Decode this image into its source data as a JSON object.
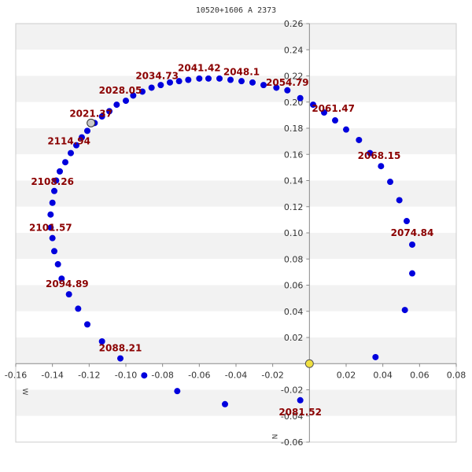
{
  "chart_data": {
    "type": "scatter",
    "title": "10520+1606 A  2373",
    "xlim": [
      -0.16,
      0.08
    ],
    "ylim": [
      -0.06,
      0.26
    ],
    "x_ticks": [
      "-0.16",
      "-0.14",
      "-0.12",
      "-0.10",
      "-0.08",
      "-0.06",
      "-0.04",
      "-0.02",
      "0.02",
      "0.04",
      "0.06",
      "0.08"
    ],
    "y_ticks": [
      "-0.06",
      "-0.04",
      "-0.02",
      "0.02",
      "0.04",
      "0.06",
      "0.08",
      "0.10",
      "0.12",
      "0.14",
      "0.16",
      "0.18",
      "0.20",
      "0.22",
      "0.24",
      "0.26"
    ],
    "x_axis_label": "W",
    "y_axis_label": "N",
    "grid": "horizontal alternating bands",
    "colors": {
      "points": "#0000dd",
      "labels": "#8b0000",
      "band": "#f2f2f2",
      "origin_marker": "#f0e040",
      "reference_marker": "#c8c8c8"
    },
    "series": [
      {
        "values": [
          [
            0.002,
            0.198
          ],
          [
            0.008,
            0.192
          ],
          [
            0.014,
            0.186
          ],
          [
            0.02,
            0.179
          ],
          [
            0.027,
            0.171
          ],
          [
            0.033,
            0.161
          ],
          [
            0.039,
            0.151
          ],
          [
            0.044,
            0.139
          ],
          [
            0.049,
            0.125
          ],
          [
            0.053,
            0.109
          ],
          [
            0.056,
            0.091
          ],
          [
            0.056,
            0.069
          ],
          [
            0.052,
            0.041
          ],
          [
            0.036,
            0.005
          ],
          [
            -0.005,
            -0.028
          ],
          [
            -0.046,
            -0.031
          ],
          [
            -0.072,
            -0.021
          ],
          [
            -0.09,
            -0.009
          ],
          [
            -0.103,
            0.004
          ],
          [
            -0.113,
            0.017
          ],
          [
            -0.121,
            0.03
          ],
          [
            -0.126,
            0.042
          ],
          [
            -0.131,
            0.053
          ],
          [
            -0.135,
            0.065
          ],
          [
            -0.137,
            0.076
          ],
          [
            -0.139,
            0.086
          ],
          [
            -0.14,
            0.096
          ],
          [
            -0.141,
            0.104
          ],
          [
            -0.141,
            0.114
          ],
          [
            -0.14,
            0.123
          ],
          [
            -0.139,
            0.132
          ],
          [
            -0.138,
            0.14
          ],
          [
            -0.136,
            0.147
          ],
          [
            -0.133,
            0.154
          ],
          [
            -0.13,
            0.161
          ],
          [
            -0.127,
            0.167
          ],
          [
            -0.124,
            0.173
          ],
          [
            -0.121,
            0.178
          ],
          [
            -0.117,
            0.184
          ],
          [
            -0.113,
            0.189
          ],
          [
            -0.109,
            0.193
          ],
          [
            -0.105,
            0.198
          ],
          [
            -0.1,
            0.201
          ],
          [
            -0.096,
            0.205
          ],
          [
            -0.091,
            0.208
          ],
          [
            -0.086,
            0.211
          ],
          [
            -0.081,
            0.213
          ],
          [
            -0.076,
            0.215
          ],
          [
            -0.071,
            0.216
          ],
          [
            -0.066,
            0.217
          ],
          [
            -0.06,
            0.218
          ],
          [
            -0.055,
            0.218
          ],
          [
            -0.049,
            0.218
          ],
          [
            -0.043,
            0.217
          ],
          [
            -0.037,
            0.216
          ],
          [
            -0.031,
            0.215
          ],
          [
            -0.025,
            0.213
          ],
          [
            -0.018,
            0.211
          ],
          [
            -0.012,
            0.209
          ],
          [
            -0.005,
            0.203
          ]
        ]
      }
    ],
    "origin_marker": [
      0.0,
      0.0
    ],
    "reference_marker": [
      -0.119,
      0.184
    ],
    "annotations": [
      {
        "text": "2061.47",
        "x": 0.013,
        "y": 0.195
      },
      {
        "text": "2068.15",
        "x": 0.038,
        "y": 0.159
      },
      {
        "text": "2074.84",
        "x": 0.056,
        "y": 0.1
      },
      {
        "text": "2081.52",
        "x": -0.005,
        "y": -0.037
      },
      {
        "text": "2088.21",
        "x": -0.103,
        "y": 0.012
      },
      {
        "text": "2094.89",
        "x": -0.132,
        "y": 0.061
      },
      {
        "text": "2101.57",
        "x": -0.141,
        "y": 0.104
      },
      {
        "text": "2108.26",
        "x": -0.14,
        "y": 0.139
      },
      {
        "text": "2114.94",
        "x": -0.131,
        "y": 0.17
      },
      {
        "text": "2021.37",
        "x": -0.119,
        "y": 0.191
      },
      {
        "text": "2028.05",
        "x": -0.103,
        "y": 0.209
      },
      {
        "text": "2034.73",
        "x": -0.083,
        "y": 0.22
      },
      {
        "text": "2041.42",
        "x": -0.06,
        "y": 0.226
      },
      {
        "text": "2048.1",
        "x": -0.037,
        "y": 0.223
      },
      {
        "text": "2054.79",
        "x": -0.012,
        "y": 0.215
      }
    ]
  }
}
